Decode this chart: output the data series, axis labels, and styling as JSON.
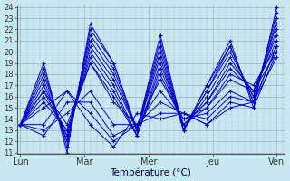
{
  "xlabel": "Température (°C)",
  "bg_color": "#c8e8f0",
  "grid_color": "#99bbcc",
  "line_color": "#0000cc",
  "ymin": 11,
  "ymax": 24,
  "day_labels": [
    "Lun",
    "Mar",
    "Mer",
    "Jeu",
    "Ven"
  ],
  "day_positions": [
    0,
    1,
    2,
    3,
    4
  ],
  "series": [
    [
      13.5,
      19.0,
      11.0,
      22.5,
      19.0,
      13.0,
      21.5,
      13.0,
      17.0,
      21.0,
      15.0,
      24.0
    ],
    [
      13.5,
      18.5,
      11.5,
      22.0,
      19.0,
      13.0,
      21.0,
      13.0,
      17.0,
      20.5,
      15.5,
      23.5
    ],
    [
      13.5,
      18.0,
      12.0,
      21.5,
      18.5,
      13.0,
      20.5,
      13.0,
      16.5,
      20.5,
      15.5,
      23.0
    ],
    [
      13.5,
      17.5,
      12.0,
      21.0,
      18.0,
      13.0,
      20.0,
      13.0,
      16.5,
      20.0,
      16.0,
      22.5
    ],
    [
      13.5,
      17.0,
      12.5,
      20.5,
      17.5,
      13.0,
      19.5,
      13.0,
      16.0,
      19.5,
      16.0,
      22.0
    ],
    [
      13.5,
      16.5,
      12.5,
      20.0,
      17.0,
      12.5,
      19.0,
      13.5,
      15.5,
      19.0,
      16.5,
      21.5
    ],
    [
      13.5,
      16.0,
      13.0,
      19.5,
      16.5,
      12.5,
      18.5,
      13.5,
      15.5,
      18.5,
      16.5,
      21.0
    ],
    [
      13.5,
      15.5,
      13.0,
      19.0,
      16.0,
      12.5,
      18.0,
      13.5,
      15.0,
      18.0,
      17.0,
      20.5
    ],
    [
      13.5,
      16.5,
      13.5,
      19.0,
      15.5,
      13.5,
      17.5,
      14.0,
      15.0,
      17.5,
      16.5,
      20.0
    ],
    [
      13.5,
      13.0,
      14.5,
      16.5,
      13.5,
      13.5,
      16.5,
      14.0,
      14.5,
      16.5,
      15.5,
      19.5
    ],
    [
      13.5,
      12.5,
      15.5,
      15.5,
      12.5,
      13.5,
      15.5,
      14.5,
      14.0,
      16.0,
      15.5,
      20.5
    ],
    [
      13.5,
      13.5,
      16.5,
      14.5,
      12.0,
      13.5,
      14.5,
      14.5,
      13.5,
      15.5,
      15.0,
      20.0
    ],
    [
      13.5,
      15.0,
      16.5,
      13.5,
      11.5,
      14.5,
      14.0,
      14.5,
      13.5,
      15.0,
      15.5,
      20.5
    ]
  ]
}
